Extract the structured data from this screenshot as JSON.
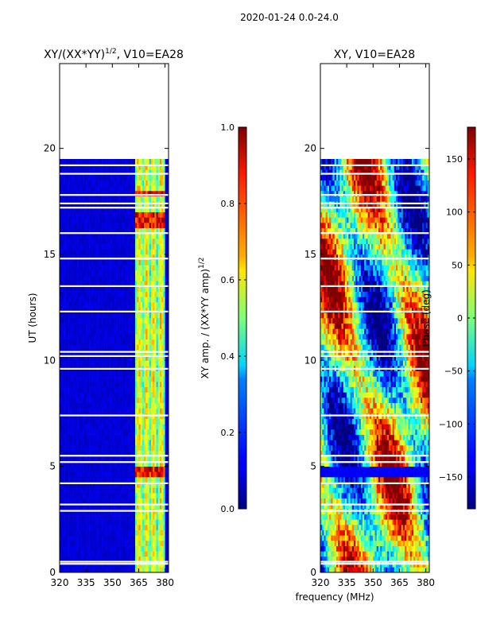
{
  "figure": {
    "suptitle": "2020-01-24 0.0-24.0",
    "xlabel_shared": "frequency (MHz)"
  },
  "chart_data": [
    {
      "type": "heatmap",
      "title": "XY/(XX*YY)^{1/2}, V10=EA28",
      "title_main": "XY/(XX*YY)",
      "title_exp": "1/2",
      "title_tail": ", V10=EA28",
      "xlabel": "",
      "ylabel": "UT (hours)",
      "xlim": [
        320,
        382
      ],
      "ylim": [
        0,
        24
      ],
      "xticks": [
        320,
        335,
        350,
        365,
        380
      ],
      "yticks": [
        0,
        5,
        10,
        15,
        20
      ],
      "data_coverage_hours": [
        0,
        19.5
      ],
      "bright_channel_band_mhz": [
        363,
        380
      ],
      "colorbar": {
        "label": "XY amp. / (XX*YY amp)^{1/2}",
        "label_main": "XY amp. / (XX*YY amp)",
        "label_exp": "1/2",
        "range": [
          0.0,
          1.0
        ],
        "ticks": [
          0.0,
          0.2,
          0.4,
          0.6,
          0.8,
          1.0
        ],
        "ticklabels": [
          "0.0",
          "0.2",
          "0.4",
          "0.6",
          "0.8",
          "1.0"
        ]
      }
    },
    {
      "type": "heatmap",
      "title": "XY, V10=EA28",
      "xlabel": "frequency (MHz)",
      "ylabel": "",
      "xlim": [
        320,
        382
      ],
      "ylim": [
        0,
        24
      ],
      "xticks": [
        320,
        335,
        350,
        365,
        380
      ],
      "yticks": [
        0,
        5,
        10,
        15,
        20
      ],
      "data_coverage_hours": [
        0,
        19.5
      ],
      "colorbar": {
        "label": "Phase (deg)",
        "range": [
          -180,
          180
        ],
        "ticks": [
          -150,
          -100,
          -50,
          0,
          50,
          100,
          150
        ],
        "ticklabels": [
          "−150",
          "−100",
          "−50",
          "0",
          "50",
          "100",
          "150"
        ]
      }
    }
  ]
}
